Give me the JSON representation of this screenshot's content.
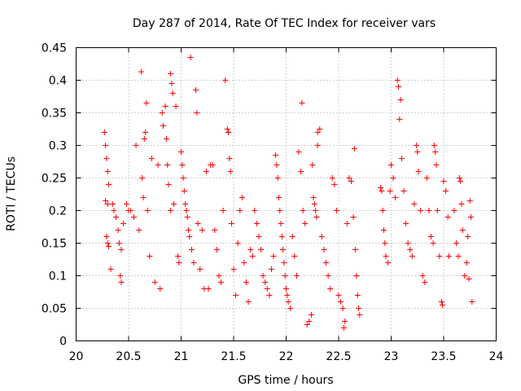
{
  "chart_data": {
    "type": "scatter",
    "title": "Day 287 of 2014, Rate Of TEC Index for receiver vars",
    "xlabel": "GPS time / hours",
    "ylabel": "ROTI / TECUs",
    "xlim": [
      20,
      24
    ],
    "ylim": [
      0,
      0.45
    ],
    "x_ticks": [
      20,
      20.5,
      21,
      21.5,
      22,
      22.5,
      23,
      23.5,
      24
    ],
    "x_tick_labels": [
      "20",
      "20.5",
      "21",
      "21.5",
      "22",
      "22.5",
      "23",
      "23.5",
      "24"
    ],
    "y_ticks": [
      0,
      0.05,
      0.1,
      0.15,
      0.2,
      0.25,
      0.3,
      0.35,
      0.4,
      0.45
    ],
    "y_tick_labels": [
      "0",
      "0.05",
      "0.1",
      "0.15",
      "0.2",
      "0.25",
      "0.3",
      "0.35",
      "0.4",
      "0.45"
    ],
    "grid": true,
    "marker": "+",
    "color": "#ff0000",
    "series": [
      {
        "name": "ROTI",
        "points": [
          [
            20.27,
            0.32
          ],
          [
            20.28,
            0.3
          ],
          [
            20.29,
            0.28
          ],
          [
            20.3,
            0.26
          ],
          [
            20.31,
            0.24
          ],
          [
            20.28,
            0.215
          ],
          [
            20.3,
            0.21
          ],
          [
            20.29,
            0.16
          ],
          [
            20.3,
            0.15
          ],
          [
            20.31,
            0.145
          ],
          [
            20.33,
            0.11
          ],
          [
            20.35,
            0.21
          ],
          [
            20.36,
            0.2
          ],
          [
            20.38,
            0.19
          ],
          [
            20.4,
            0.17
          ],
          [
            20.41,
            0.15
          ],
          [
            20.43,
            0.14
          ],
          [
            20.42,
            0.1
          ],
          [
            20.43,
            0.09
          ],
          [
            20.45,
            0.18
          ],
          [
            20.48,
            0.21
          ],
          [
            20.5,
            0.2
          ],
          [
            20.52,
            0.2
          ],
          [
            20.55,
            0.19
          ],
          [
            20.57,
            0.3
          ],
          [
            20.6,
            0.17
          ],
          [
            20.62,
            0.413
          ],
          [
            20.63,
            0.25
          ],
          [
            20.64,
            0.22
          ],
          [
            20.65,
            0.31
          ],
          [
            20.66,
            0.32
          ],
          [
            20.67,
            0.365
          ],
          [
            20.68,
            0.2
          ],
          [
            20.7,
            0.13
          ],
          [
            20.72,
            0.28
          ],
          [
            20.75,
            0.09
          ],
          [
            20.78,
            0.27
          ],
          [
            20.8,
            0.08
          ],
          [
            20.82,
            0.35
          ],
          [
            20.83,
            0.33
          ],
          [
            20.85,
            0.36
          ],
          [
            20.86,
            0.31
          ],
          [
            20.87,
            0.27
          ],
          [
            20.88,
            0.24
          ],
          [
            20.9,
            0.2
          ],
          [
            20.9,
            0.41
          ],
          [
            20.91,
            0.395
          ],
          [
            20.92,
            0.38
          ],
          [
            20.93,
            0.21
          ],
          [
            20.95,
            0.36
          ],
          [
            20.97,
            0.13
          ],
          [
            20.98,
            0.12
          ],
          [
            21.0,
            0.29
          ],
          [
            21.01,
            0.27
          ],
          [
            21.02,
            0.25
          ],
          [
            21.03,
            0.23
          ],
          [
            21.04,
            0.21
          ],
          [
            21.05,
            0.2
          ],
          [
            21.06,
            0.19
          ],
          [
            21.07,
            0.17
          ],
          [
            21.08,
            0.16
          ],
          [
            21.09,
            0.435
          ],
          [
            21.1,
            0.14
          ],
          [
            21.12,
            0.12
          ],
          [
            21.14,
            0.385
          ],
          [
            21.15,
            0.35
          ],
          [
            21.16,
            0.18
          ],
          [
            21.18,
            0.11
          ],
          [
            21.2,
            0.17
          ],
          [
            21.22,
            0.08
          ],
          [
            21.24,
            0.26
          ],
          [
            21.26,
            0.08
          ],
          [
            21.28,
            0.27
          ],
          [
            21.3,
            0.27
          ],
          [
            21.32,
            0.17
          ],
          [
            21.34,
            0.14
          ],
          [
            21.36,
            0.1
          ],
          [
            21.38,
            0.09
          ],
          [
            21.4,
            0.2
          ],
          [
            21.42,
            0.4
          ],
          [
            21.44,
            0.325
          ],
          [
            21.45,
            0.32
          ],
          [
            21.46,
            0.28
          ],
          [
            21.47,
            0.26
          ],
          [
            21.48,
            0.18
          ],
          [
            21.5,
            0.11
          ],
          [
            21.52,
            0.07
          ],
          [
            21.54,
            0.15
          ],
          [
            21.56,
            0.2
          ],
          [
            21.58,
            0.22
          ],
          [
            21.6,
            0.12
          ],
          [
            21.62,
            0.09
          ],
          [
            21.64,
            0.06
          ],
          [
            21.66,
            0.14
          ],
          [
            21.68,
            0.13
          ],
          [
            21.7,
            0.2
          ],
          [
            21.72,
            0.18
          ],
          [
            21.74,
            0.16
          ],
          [
            21.76,
            0.14
          ],
          [
            21.78,
            0.1
          ],
          [
            21.8,
            0.09
          ],
          [
            21.82,
            0.08
          ],
          [
            21.84,
            0.07
          ],
          [
            21.86,
            0.11
          ],
          [
            21.88,
            0.13
          ],
          [
            21.9,
            0.285
          ],
          [
            21.91,
            0.27
          ],
          [
            21.92,
            0.25
          ],
          [
            21.93,
            0.22
          ],
          [
            21.94,
            0.2
          ],
          [
            21.95,
            0.18
          ],
          [
            21.96,
            0.16
          ],
          [
            21.97,
            0.14
          ],
          [
            21.98,
            0.12
          ],
          [
            21.99,
            0.1
          ],
          [
            22.0,
            0.08
          ],
          [
            22.01,
            0.07
          ],
          [
            22.02,
            0.06
          ],
          [
            22.04,
            0.05
          ],
          [
            22.06,
            0.16
          ],
          [
            22.08,
            0.13
          ],
          [
            22.1,
            0.1
          ],
          [
            22.12,
            0.29
          ],
          [
            22.14,
            0.26
          ],
          [
            22.15,
            0.365
          ],
          [
            22.16,
            0.2
          ],
          [
            22.18,
            0.18
          ],
          [
            22.2,
            0.025
          ],
          [
            22.22,
            0.03
          ],
          [
            22.24,
            0.04
          ],
          [
            22.25,
            0.27
          ],
          [
            22.26,
            0.22
          ],
          [
            22.27,
            0.21
          ],
          [
            22.28,
            0.2
          ],
          [
            22.29,
            0.19
          ],
          [
            22.3,
            0.3
          ],
          [
            22.3,
            0.32
          ],
          [
            22.32,
            0.325
          ],
          [
            22.34,
            0.16
          ],
          [
            22.36,
            0.14
          ],
          [
            22.38,
            0.12
          ],
          [
            22.4,
            0.1
          ],
          [
            22.42,
            0.08
          ],
          [
            22.44,
            0.25
          ],
          [
            22.46,
            0.24
          ],
          [
            22.48,
            0.2
          ],
          [
            22.5,
            0.07
          ],
          [
            22.52,
            0.06
          ],
          [
            22.54,
            0.05
          ],
          [
            22.55,
            0.02
          ],
          [
            22.56,
            0.03
          ],
          [
            22.58,
            0.18
          ],
          [
            22.6,
            0.25
          ],
          [
            22.62,
            0.245
          ],
          [
            22.64,
            0.19
          ],
          [
            22.65,
            0.295
          ],
          [
            22.66,
            0.14
          ],
          [
            22.67,
            0.1
          ],
          [
            22.68,
            0.07
          ],
          [
            22.69,
            0.05
          ],
          [
            22.7,
            0.04
          ],
          [
            22.9,
            0.235
          ],
          [
            22.91,
            0.23
          ],
          [
            22.92,
            0.2
          ],
          [
            22.93,
            0.17
          ],
          [
            22.94,
            0.15
          ],
          [
            22.95,
            0.13
          ],
          [
            22.97,
            0.12
          ],
          [
            22.99,
            0.23
          ],
          [
            23.0,
            0.27
          ],
          [
            23.02,
            0.25
          ],
          [
            23.04,
            0.22
          ],
          [
            23.06,
            0.4
          ],
          [
            23.07,
            0.39
          ],
          [
            23.08,
            0.34
          ],
          [
            23.09,
            0.37
          ],
          [
            23.1,
            0.28
          ],
          [
            23.12,
            0.23
          ],
          [
            23.14,
            0.18
          ],
          [
            23.16,
            0.15
          ],
          [
            23.18,
            0.14
          ],
          [
            23.2,
            0.13
          ],
          [
            23.22,
            0.21
          ],
          [
            23.24,
            0.3
          ],
          [
            23.25,
            0.29
          ],
          [
            23.26,
            0.26
          ],
          [
            23.28,
            0.2
          ],
          [
            23.3,
            0.1
          ],
          [
            23.32,
            0.09
          ],
          [
            23.34,
            0.25
          ],
          [
            23.36,
            0.2
          ],
          [
            23.38,
            0.16
          ],
          [
            23.4,
            0.15
          ],
          [
            23.41,
            0.3
          ],
          [
            23.42,
            0.29
          ],
          [
            23.43,
            0.27
          ],
          [
            23.44,
            0.2
          ],
          [
            23.46,
            0.13
          ],
          [
            23.48,
            0.06
          ],
          [
            23.49,
            0.055
          ],
          [
            23.5,
            0.245
          ],
          [
            23.52,
            0.23
          ],
          [
            23.54,
            0.19
          ],
          [
            23.55,
            0.13
          ],
          [
            23.6,
            0.2
          ],
          [
            23.62,
            0.15
          ],
          [
            23.64,
            0.13
          ],
          [
            23.65,
            0.25
          ],
          [
            23.66,
            0.245
          ],
          [
            23.67,
            0.21
          ],
          [
            23.68,
            0.17
          ],
          [
            23.7,
            0.1
          ],
          [
            23.72,
            0.12
          ],
          [
            23.73,
            0.16
          ],
          [
            23.74,
            0.095
          ],
          [
            23.75,
            0.215
          ],
          [
            23.76,
            0.19
          ],
          [
            23.77,
            0.06
          ]
        ]
      }
    ]
  }
}
